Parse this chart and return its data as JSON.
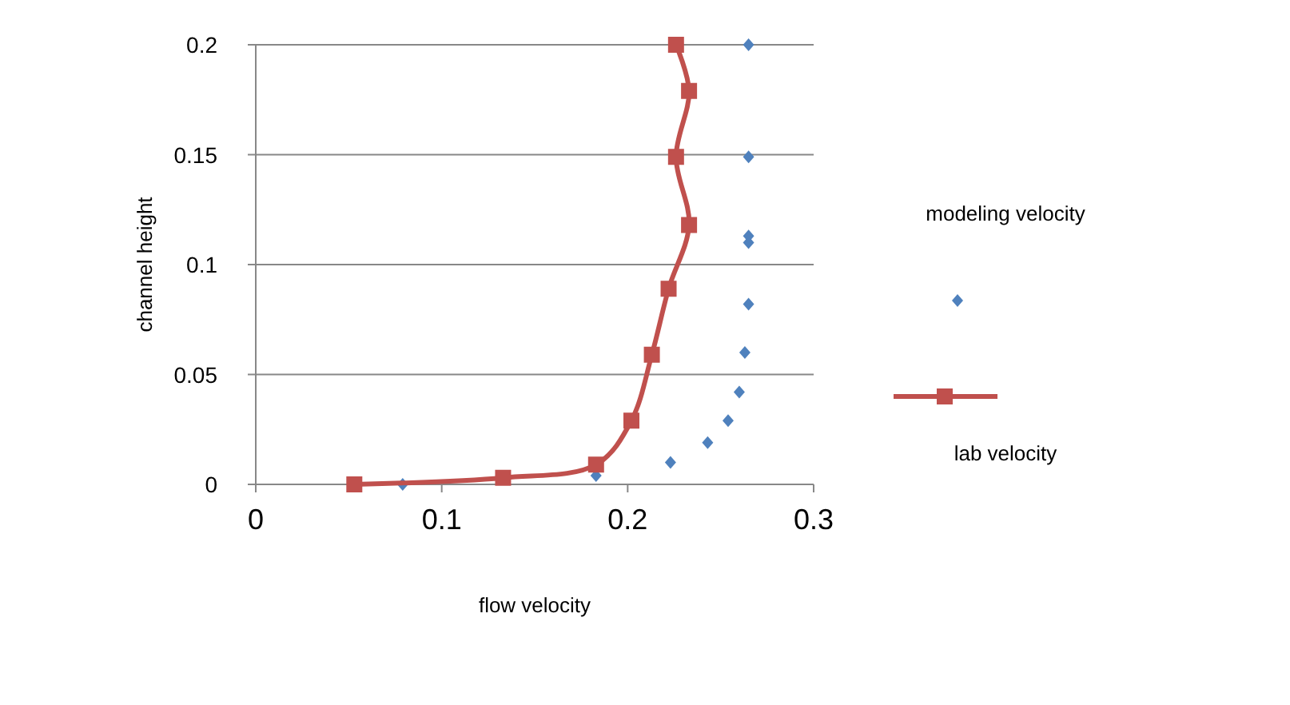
{
  "chart_data": {
    "type": "scatter",
    "xlabel": "flow velocity",
    "ylabel": "channel height",
    "xlim": [
      0,
      0.3
    ],
    "xticks": [
      0,
      0.1,
      0.2,
      0.3
    ],
    "ylim": [
      0,
      0.2
    ],
    "yticks": [
      0,
      0.05,
      0.1,
      0.15,
      0.2
    ],
    "grid": "y",
    "legend": "right",
    "series": [
      {
        "name": "modeling velocity",
        "marker": "diamond",
        "color": "#4f81bd",
        "x": [
          0.079,
          0.183,
          0.223,
          0.243,
          0.254,
          0.26,
          0.263,
          0.265,
          0.265,
          0.265,
          0.265,
          0.265
        ],
        "values": [
          0,
          0.004,
          0.01,
          0.019,
          0.029,
          0.042,
          0.06,
          0.082,
          0.11,
          0.113,
          0.149,
          0.2
        ]
      },
      {
        "name": "lab velocity",
        "type": "line",
        "marker": "square",
        "line_style": "solid",
        "color": "#c0504d",
        "x": [
          0.053,
          0.133,
          0.183,
          0.202,
          0.213,
          0.222,
          0.233,
          0.226,
          0.233,
          0.226
        ],
        "values": [
          0,
          0.003,
          0.009,
          0.029,
          0.059,
          0.089,
          0.118,
          0.149,
          0.179,
          0.2
        ]
      }
    ]
  }
}
